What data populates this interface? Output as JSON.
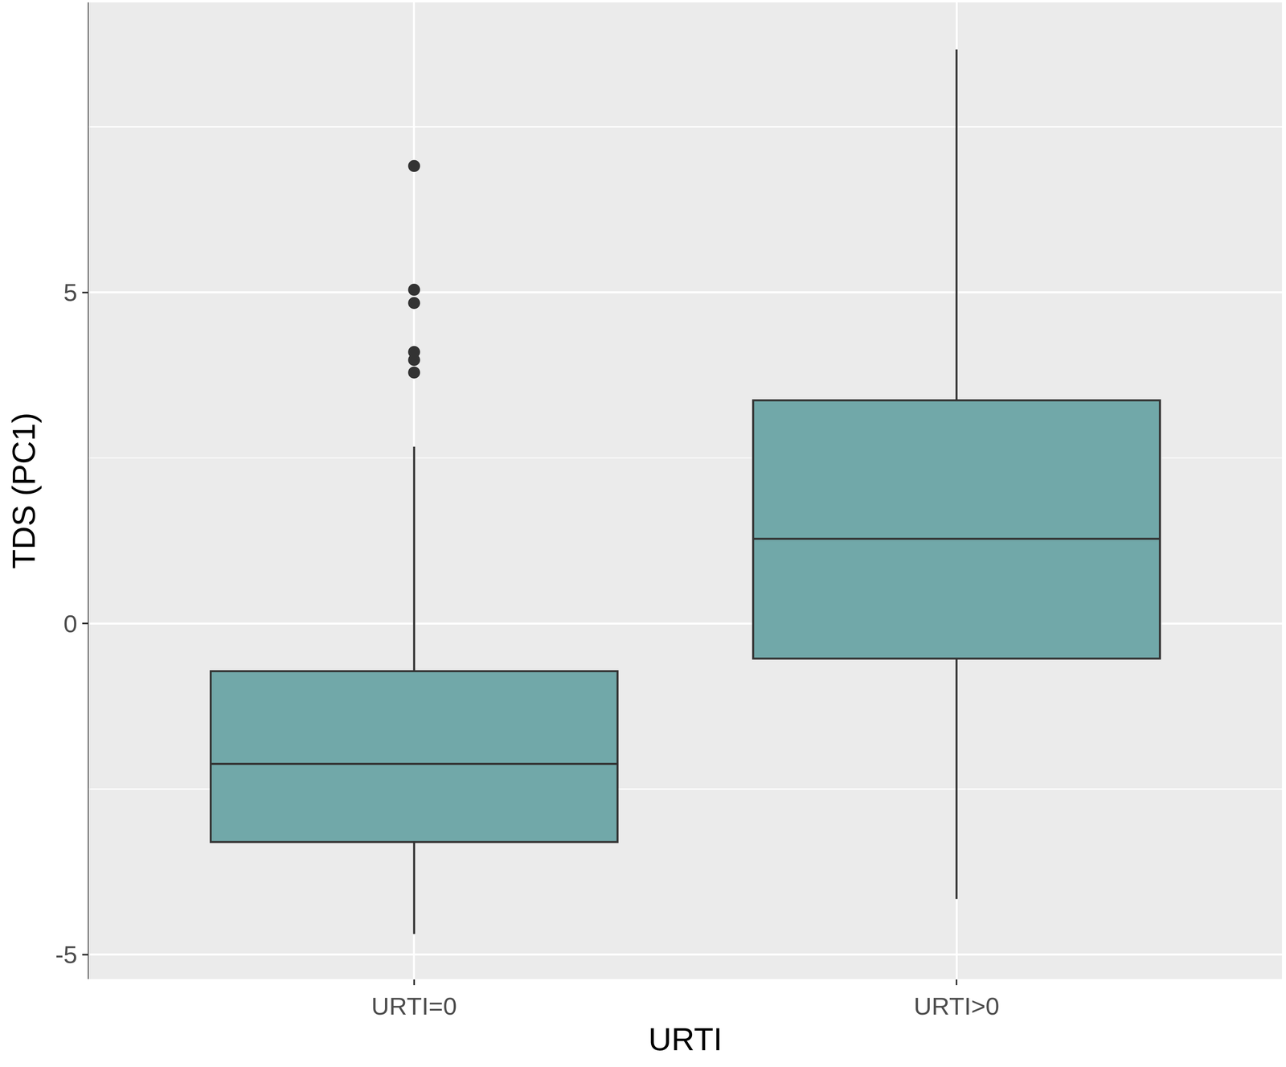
{
  "chart_data": {
    "type": "box",
    "x_label": "URTI",
    "y_label": "TDS (PC1)",
    "categories": [
      "URTI=0",
      "URTI>0"
    ],
    "lower_whisker": [
      -4.69,
      -4.16
    ],
    "q1": [
      -3.3,
      -0.53
    ],
    "median": [
      -2.12,
      1.28
    ],
    "q3": [
      -0.72,
      3.37
    ],
    "upper_whisker": [
      2.67,
      8.67
    ],
    "outliers": [
      [
        6.91,
        5.04,
        4.84,
        4.1,
        3.98,
        3.79
      ],
      []
    ],
    "color": "#71a8a9",
    "ylim": [
      -5.37,
      9.38
    ],
    "yticks": [
      -5,
      0,
      5
    ],
    "grid": true
  }
}
